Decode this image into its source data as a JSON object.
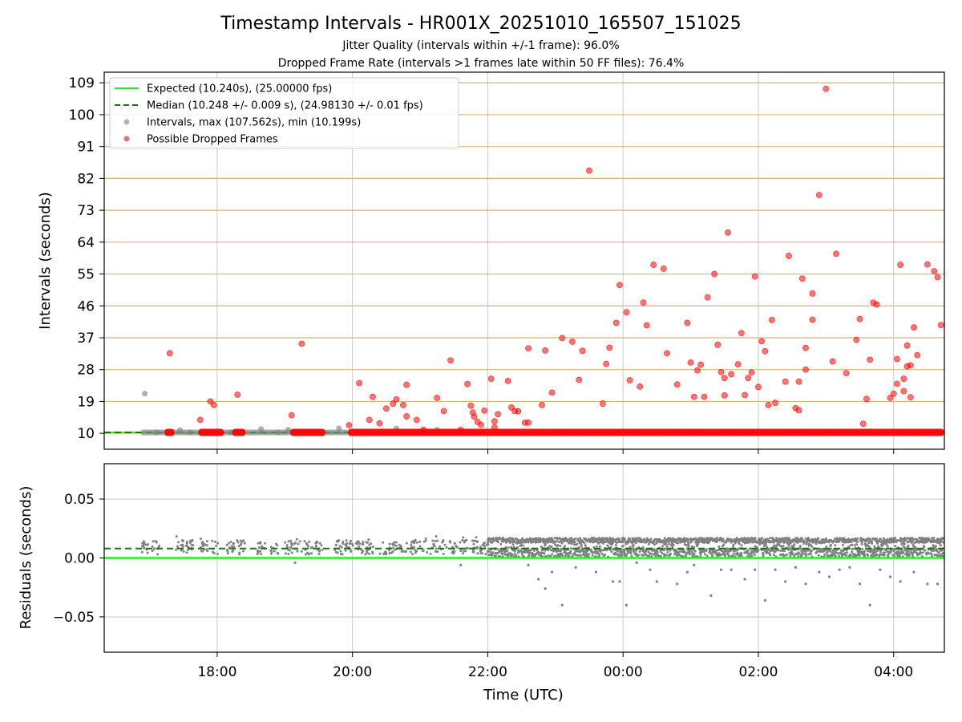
{
  "chart_data": {
    "title": "Timestamp Intervals - HR001X_20251010_165507_151025",
    "subtitles": [
      "Jitter Quality (intervals within +/-1 frame): 96.0%",
      "Dropped Frame Rate (intervals >1 frames late within 50 FF files): 76.4%"
    ],
    "xlabel": "Time (UTC)",
    "x_range_hours": [
      16.33,
      28.75
    ],
    "x_tick_hours": [
      18,
      20,
      22,
      24,
      26,
      28
    ],
    "x_tick_labels": [
      "18:00",
      "20:00",
      "22:00",
      "00:00",
      "02:00",
      "04:00"
    ],
    "colors": {
      "expected": "#22ee22",
      "median": "#117711",
      "intervals": "#808080",
      "dropped": "#ff0000",
      "grid_intervals": "#d4b870",
      "grid": "#c8c8c8"
    },
    "top": {
      "type": "scatter",
      "ylabel": "Intervals (seconds)",
      "ylim": [
        5.5,
        112
      ],
      "yticks": [
        10,
        19,
        28,
        37,
        46,
        55,
        64,
        73,
        82,
        91,
        100,
        109
      ],
      "expected": 10.24,
      "median": 10.248,
      "legend": {
        "placement": "top-left",
        "items": [
          "Expected (10.240s), (25.00000 fps)",
          "Median (10.248 +/- 0.009 s), (24.98130 +/- 0.01 fps)",
          "Intervals, max (107.562s), min (10.199s)",
          "Possible Dropped Frames"
        ]
      },
      "intervals_points": [
        [
          16.93,
          21.2
        ],
        [
          17.45,
          10.9
        ],
        [
          18.65,
          11.2
        ],
        [
          19.05,
          11.0
        ],
        [
          19.8,
          11.4
        ],
        [
          20.65,
          11.4
        ],
        [
          21.25,
          11.0
        ],
        [
          17.1,
          10.25
        ],
        [
          17.6,
          10.25
        ],
        [
          18.2,
          10.25
        ],
        [
          18.9,
          10.25
        ],
        [
          19.5,
          10.25
        ],
        [
          20.2,
          10.25
        ],
        [
          20.9,
          10.25
        ],
        [
          21.6,
          10.25
        ]
      ],
      "dropped_points": [
        [
          17.3,
          32.6
        ],
        [
          17.75,
          13.8
        ],
        [
          17.9,
          19.0
        ],
        [
          17.95,
          18.0
        ],
        [
          18.3,
          20.9
        ],
        [
          19.1,
          15.1
        ],
        [
          19.25,
          35.3
        ],
        [
          19.95,
          12.3
        ],
        [
          20.1,
          24.2
        ],
        [
          20.25,
          13.8
        ],
        [
          20.3,
          20.3
        ],
        [
          20.4,
          12.8
        ],
        [
          20.5,
          17.0
        ],
        [
          20.6,
          18.4
        ],
        [
          20.65,
          19.6
        ],
        [
          20.75,
          18.0
        ],
        [
          20.8,
          14.8
        ],
        [
          20.8,
          23.7
        ],
        [
          20.95,
          13.8
        ],
        [
          21.05,
          11.0
        ],
        [
          21.25,
          20.0
        ],
        [
          21.35,
          16.3
        ],
        [
          21.45,
          30.6
        ],
        [
          21.6,
          11.0
        ],
        [
          21.7,
          23.9
        ],
        [
          21.75,
          17.8
        ],
        [
          21.78,
          15.9
        ],
        [
          21.8,
          14.7
        ],
        [
          21.85,
          13.2
        ],
        [
          21.9,
          12.4
        ],
        [
          21.95,
          16.4
        ],
        [
          22.05,
          25.4
        ],
        [
          22.1,
          11.7
        ],
        [
          22.1,
          13.4
        ],
        [
          22.15,
          15.4
        ],
        [
          22.3,
          24.8
        ],
        [
          22.35,
          17.3
        ],
        [
          22.4,
          16.3
        ],
        [
          22.45,
          16.2
        ],
        [
          22.55,
          13.0
        ],
        [
          22.6,
          13.0
        ],
        [
          22.6,
          34.0
        ],
        [
          22.8,
          18.0
        ],
        [
          22.85,
          33.4
        ],
        [
          22.95,
          21.5
        ],
        [
          23.1,
          36.9
        ],
        [
          23.25,
          35.9
        ],
        [
          23.35,
          25.1
        ],
        [
          23.4,
          33.3
        ],
        [
          23.5,
          84.2
        ],
        [
          23.7,
          18.4
        ],
        [
          23.75,
          29.6
        ],
        [
          23.8,
          34.2
        ],
        [
          23.9,
          41.2
        ],
        [
          23.95,
          51.9
        ],
        [
          24.05,
          44.2
        ],
        [
          24.1,
          25.0
        ],
        [
          24.25,
          23.2
        ],
        [
          24.3,
          46.9
        ],
        [
          24.35,
          40.5
        ],
        [
          24.45,
          57.6
        ],
        [
          24.6,
          56.5
        ],
        [
          24.65,
          32.6
        ],
        [
          24.8,
          23.8
        ],
        [
          24.95,
          41.2
        ],
        [
          25.0,
          30.0
        ],
        [
          25.05,
          20.3
        ],
        [
          25.1,
          27.8
        ],
        [
          25.15,
          29.4
        ],
        [
          25.2,
          20.3
        ],
        [
          25.25,
          48.4
        ],
        [
          25.35,
          55.0
        ],
        [
          25.4,
          35.0
        ],
        [
          25.45,
          27.3
        ],
        [
          25.5,
          20.7
        ],
        [
          25.5,
          25.6
        ],
        [
          25.55,
          66.7
        ],
        [
          25.6,
          26.7
        ],
        [
          25.7,
          29.5
        ],
        [
          25.75,
          38.3
        ],
        [
          25.8,
          20.8
        ],
        [
          25.85,
          25.6
        ],
        [
          25.9,
          27.2
        ],
        [
          25.95,
          54.3
        ],
        [
          26.0,
          23.1
        ],
        [
          26.05,
          36.0
        ],
        [
          26.1,
          33.2
        ],
        [
          26.15,
          18.0
        ],
        [
          26.2,
          42.0
        ],
        [
          26.25,
          18.6
        ],
        [
          26.4,
          24.6
        ],
        [
          26.45,
          60.1
        ],
        [
          26.55,
          17.1
        ],
        [
          26.6,
          16.5
        ],
        [
          26.6,
          24.6
        ],
        [
          26.65,
          53.7
        ],
        [
          26.7,
          34.1
        ],
        [
          26.7,
          28.0
        ],
        [
          26.8,
          49.5
        ],
        [
          26.8,
          42.1
        ],
        [
          26.9,
          77.3
        ],
        [
          27.0,
          107.3
        ],
        [
          27.1,
          30.3
        ],
        [
          27.15,
          60.7
        ],
        [
          27.3,
          27.0
        ],
        [
          27.45,
          36.4
        ],
        [
          27.5,
          42.3
        ],
        [
          27.55,
          12.7
        ],
        [
          27.6,
          19.7
        ],
        [
          27.65,
          30.8
        ],
        [
          27.7,
          46.9
        ],
        [
          27.75,
          46.4
        ],
        [
          27.95,
          20.0
        ],
        [
          28.0,
          21.2
        ],
        [
          28.05,
          24.0
        ],
        [
          28.05,
          31.0
        ],
        [
          28.1,
          57.6
        ],
        [
          28.15,
          21.9
        ],
        [
          28.15,
          25.4
        ],
        [
          28.2,
          34.8
        ],
        [
          28.2,
          28.9
        ],
        [
          28.25,
          29.2
        ],
        [
          28.25,
          20.2
        ],
        [
          28.3,
          39.9
        ],
        [
          28.35,
          32.1
        ],
        [
          28.5,
          57.7
        ],
        [
          28.6,
          55.8
        ],
        [
          28.65,
          54.1
        ],
        [
          28.7,
          40.6
        ]
      ],
      "dropped_baseline_segments": [
        [
          17.22,
          17.37
        ],
        [
          17.72,
          18.1
        ],
        [
          18.22,
          18.42
        ],
        [
          19.08,
          19.6
        ],
        [
          19.93,
          28.75
        ]
      ],
      "intervals_baseline_segments": [
        [
          16.88,
          19.93
        ]
      ],
      "dropped_baseline_value": 10.25
    },
    "bottom": {
      "type": "scatter",
      "ylabel": "Residuals (seconds)",
      "ylim": [
        -0.08,
        0.08
      ],
      "yticks": [
        -0.05,
        0.0,
        0.05
      ],
      "ytick_labels": [
        "−0.05",
        "0.00",
        "0.05"
      ],
      "expected": 0.0,
      "median": 0.008,
      "outliers": [
        [
          21.6,
          -0.006
        ],
        [
          19.15,
          -0.004
        ],
        [
          22.6,
          -0.006
        ],
        [
          22.75,
          -0.018
        ],
        [
          22.85,
          -0.026
        ],
        [
          22.95,
          -0.012
        ],
        [
          23.1,
          -0.04
        ],
        [
          23.3,
          -0.008
        ],
        [
          23.6,
          -0.012
        ],
        [
          23.85,
          -0.02
        ],
        [
          23.95,
          -0.02
        ],
        [
          24.05,
          -0.04
        ],
        [
          24.2,
          -0.004
        ],
        [
          24.4,
          -0.01
        ],
        [
          24.5,
          -0.02
        ],
        [
          24.8,
          -0.022
        ],
        [
          24.95,
          -0.012
        ],
        [
          25.05,
          -0.006
        ],
        [
          25.3,
          -0.032
        ],
        [
          25.45,
          -0.01
        ],
        [
          25.6,
          -0.01
        ],
        [
          25.8,
          -0.018
        ],
        [
          25.95,
          -0.01
        ],
        [
          26.1,
          -0.036
        ],
        [
          26.25,
          -0.01
        ],
        [
          26.4,
          -0.02
        ],
        [
          26.55,
          -0.008
        ],
        [
          26.7,
          -0.022
        ],
        [
          26.9,
          -0.012
        ],
        [
          27.05,
          -0.016
        ],
        [
          27.2,
          -0.01
        ],
        [
          27.35,
          -0.008
        ],
        [
          27.5,
          -0.022
        ],
        [
          27.65,
          -0.04
        ],
        [
          27.8,
          -0.01
        ],
        [
          27.95,
          -0.016
        ],
        [
          28.1,
          -0.02
        ],
        [
          28.3,
          -0.012
        ],
        [
          28.5,
          -0.022
        ],
        [
          28.65,
          -0.022
        ]
      ]
    }
  }
}
